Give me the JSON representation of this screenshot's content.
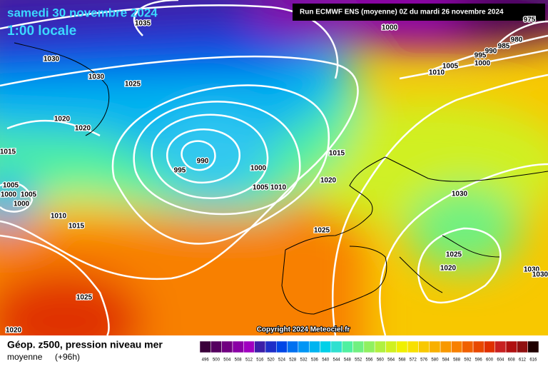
{
  "header": {
    "date": "samedi 30 novembre 2024",
    "time": "1:00 locale",
    "run": "Run ECMWF ENS (moyenne) 0Z du mardi 26 novembre 2024"
  },
  "copyright": "Copyright 2024 Meteociel.fr",
  "footer": {
    "title": "Géop. z500, pression niveau mer",
    "subtitle": "moyenne",
    "lead": "(+96h)"
  },
  "isobar_labels": [
    1035,
    1030,
    1030,
    1025,
    1020,
    1020,
    1015,
    990,
    995,
    1000,
    1005,
    1010,
    1015,
    1020,
    1005,
    1000,
    1005,
    1000,
    1010,
    1015,
    1025,
    1030,
    1025,
    1020,
    1030,
    1030,
    1025,
    1020,
    1000,
    1010,
    1005,
    1000,
    995,
    990,
    985,
    980,
    975
  ],
  "scale": [
    {
      "value": 496,
      "color": "#3a003a"
    },
    {
      "value": 500,
      "color": "#55005f"
    },
    {
      "value": 504,
      "color": "#700080"
    },
    {
      "value": 508,
      "color": "#8a00a5"
    },
    {
      "value": 512,
      "color": "#a000c0"
    },
    {
      "value": 516,
      "color": "#3c1ea8"
    },
    {
      "value": 520,
      "color": "#1e2ec8"
    },
    {
      "value": 524,
      "color": "#0046e6"
    },
    {
      "value": 528,
      "color": "#0070f0"
    },
    {
      "value": 532,
      "color": "#0096f5"
    },
    {
      "value": 536,
      "color": "#00b4f0"
    },
    {
      "value": 540,
      "color": "#00d0e8"
    },
    {
      "value": 544,
      "color": "#30e0d0"
    },
    {
      "value": 548,
      "color": "#50f0a0"
    },
    {
      "value": 552,
      "color": "#70f080"
    },
    {
      "value": 556,
      "color": "#90f060"
    },
    {
      "value": 560,
      "color": "#b0f040"
    },
    {
      "value": 564,
      "color": "#d0f020"
    },
    {
      "value": 568,
      "color": "#f0f000"
    },
    {
      "value": 572,
      "color": "#f8e000"
    },
    {
      "value": 576,
      "color": "#f8c800"
    },
    {
      "value": 580,
      "color": "#f8b000"
    },
    {
      "value": 584,
      "color": "#f89800"
    },
    {
      "value": 588,
      "color": "#f88000"
    },
    {
      "value": 592,
      "color": "#f06000"
    },
    {
      "value": 596,
      "color": "#e84800"
    },
    {
      "value": 600,
      "color": "#e03000"
    },
    {
      "value": 604,
      "color": "#c82020"
    },
    {
      "value": 608,
      "color": "#b01010"
    },
    {
      "value": 612,
      "color": "#901010"
    },
    {
      "value": 616,
      "color": "#200000"
    }
  ]
}
